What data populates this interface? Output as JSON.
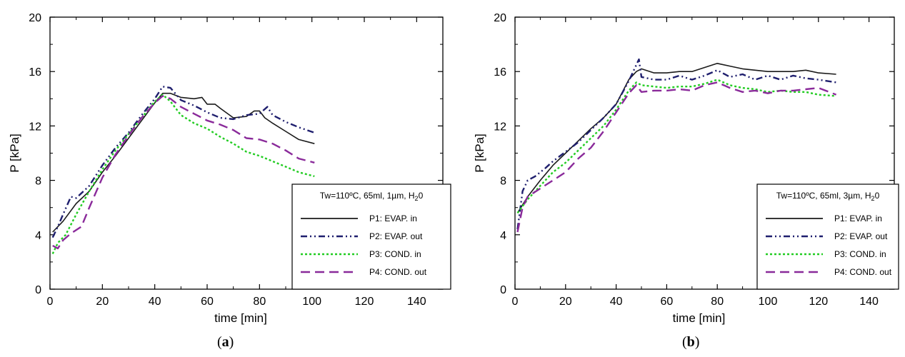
{
  "panels": [
    {
      "id": "a",
      "label": "a",
      "legend_title": "Tw=110ºC, 65ml, 1µm, H",
      "legend_title_sub": "2",
      "legend_title_tail": "0"
    },
    {
      "id": "b",
      "label": "b",
      "legend_title": "Tw=110ºC, 65ml, 3µm, H",
      "legend_title_sub": "2",
      "legend_title_tail": "0"
    }
  ],
  "colors": {
    "P1": "#1a1a1a",
    "P2": "#1f1f6e",
    "P3": "#22cc22",
    "P4": "#8a2a9a"
  },
  "chart_data": [
    {
      "type": "line",
      "xlabel": "time [min]",
      "ylabel": "P [kPa]",
      "xlim": [
        0,
        150
      ],
      "ylim": [
        0,
        20
      ],
      "xticks": [
        0,
        20,
        40,
        60,
        80,
        100,
        120,
        140
      ],
      "yticks": [
        0,
        4,
        8,
        12,
        16,
        20
      ],
      "legend_placement": "bottom-right",
      "series": [
        {
          "name": "P1: EVAP. in",
          "style": "solid",
          "x": [
            1,
            5,
            10,
            15,
            20,
            25,
            30,
            35,
            40,
            43,
            46,
            50,
            55,
            58,
            60,
            63,
            65,
            70,
            75,
            78,
            80,
            82,
            85,
            90,
            95,
            101
          ],
          "y": [
            4.2,
            5.0,
            6.3,
            7.2,
            8.6,
            9.8,
            11.1,
            12.4,
            13.7,
            14.4,
            14.4,
            14.1,
            14.0,
            14.1,
            13.6,
            13.6,
            13.3,
            12.6,
            12.7,
            13.1,
            13.1,
            12.6,
            12.2,
            11.6,
            11.0,
            10.7
          ]
        },
        {
          "name": "P2: EVAP. out",
          "style": "dashdotdot",
          "x": [
            1,
            3,
            5,
            8,
            10,
            15,
            20,
            25,
            30,
            35,
            40,
            43,
            46,
            50,
            55,
            60,
            65,
            70,
            75,
            80,
            83,
            85,
            90,
            95,
            101
          ],
          "y": [
            3.8,
            4.6,
            5.5,
            6.8,
            6.7,
            7.6,
            9.1,
            10.4,
            11.5,
            12.8,
            14.0,
            14.9,
            14.8,
            13.9,
            13.5,
            13.0,
            12.6,
            12.5,
            12.8,
            12.9,
            13.4,
            12.8,
            12.3,
            11.9,
            11.5
          ]
        },
        {
          "name": "P3: COND. in",
          "style": "dotted",
          "x": [
            1,
            3,
            6,
            10,
            15,
            20,
            25,
            30,
            35,
            40,
            43,
            46,
            50,
            55,
            60,
            65,
            70,
            75,
            80,
            85,
            90,
            95,
            101
          ],
          "y": [
            2.6,
            3.4,
            4.0,
            5.5,
            7.2,
            8.8,
            10.2,
            11.4,
            12.6,
            13.8,
            14.3,
            13.8,
            12.8,
            12.2,
            11.8,
            11.2,
            10.7,
            10.1,
            9.8,
            9.4,
            9.0,
            8.6,
            8.3
          ]
        },
        {
          "name": "P4: COND. out",
          "style": "longdash",
          "x": [
            1,
            3,
            5,
            8,
            12,
            15,
            20,
            25,
            30,
            35,
            40,
            43,
            46,
            50,
            55,
            60,
            65,
            70,
            75,
            80,
            85,
            90,
            95,
            101
          ],
          "y": [
            3.2,
            3.0,
            3.6,
            4.1,
            4.6,
            6.0,
            8.2,
            9.9,
            11.3,
            12.6,
            13.7,
            14.2,
            14.0,
            13.4,
            12.9,
            12.4,
            12.1,
            11.7,
            11.1,
            11.0,
            10.7,
            10.2,
            9.6,
            9.3
          ]
        }
      ]
    },
    {
      "type": "line",
      "xlabel": "time [min]",
      "ylabel": "P [kPa]",
      "xlim": [
        0,
        150
      ],
      "ylim": [
        0,
        20
      ],
      "xticks": [
        0,
        20,
        40,
        60,
        80,
        100,
        120,
        140
      ],
      "yticks": [
        0,
        4,
        8,
        12,
        16,
        20
      ],
      "legend_placement": "bottom-right",
      "series": [
        {
          "name": "P1: EVAP. in",
          "style": "solid",
          "x": [
            1,
            5,
            10,
            15,
            20,
            25,
            30,
            35,
            40,
            45,
            48,
            50,
            55,
            60,
            65,
            70,
            75,
            80,
            85,
            90,
            95,
            100,
            105,
            110,
            115,
            120,
            127
          ],
          "y": [
            5.6,
            6.8,
            8.0,
            9.1,
            10.0,
            10.9,
            11.8,
            12.6,
            13.6,
            15.4,
            16.0,
            16.2,
            15.9,
            15.9,
            16.0,
            16.0,
            16.3,
            16.6,
            16.4,
            16.2,
            16.1,
            16.0,
            16.0,
            16.0,
            16.1,
            15.9,
            15.8
          ]
        },
        {
          "name": "P2: EVAP. out",
          "style": "dashdotdot",
          "x": [
            1,
            3,
            5,
            8,
            12,
            15,
            20,
            25,
            30,
            35,
            40,
            45,
            49,
            50,
            55,
            60,
            65,
            70,
            75,
            80,
            85,
            90,
            95,
            100,
            105,
            110,
            115,
            120,
            127
          ],
          "y": [
            4.4,
            7.2,
            8.0,
            8.3,
            8.9,
            9.4,
            10.1,
            10.8,
            11.7,
            12.6,
            13.6,
            15.3,
            16.9,
            15.6,
            15.4,
            15.4,
            15.7,
            15.4,
            15.7,
            16.1,
            15.6,
            15.8,
            15.4,
            15.7,
            15.4,
            15.7,
            15.5,
            15.4,
            15.2
          ]
        },
        {
          "name": "P3: COND. in",
          "style": "dotted",
          "x": [
            1,
            5,
            10,
            15,
            20,
            25,
            30,
            35,
            40,
            45,
            48,
            50,
            55,
            60,
            65,
            70,
            75,
            80,
            85,
            90,
            95,
            100,
            105,
            110,
            115,
            120,
            127
          ],
          "y": [
            5.6,
            6.6,
            7.6,
            8.6,
            9.3,
            10.2,
            11.1,
            12.0,
            13.2,
            14.6,
            15.2,
            15.0,
            14.9,
            14.8,
            14.9,
            14.9,
            15.1,
            15.4,
            15.0,
            14.8,
            14.7,
            14.5,
            14.6,
            14.5,
            14.5,
            14.3,
            14.2
          ]
        },
        {
          "name": "P4: COND. out",
          "style": "longdash",
          "x": [
            1,
            3,
            5,
            10,
            15,
            20,
            25,
            30,
            35,
            40,
            45,
            48,
            50,
            55,
            60,
            65,
            70,
            75,
            80,
            85,
            90,
            95,
            100,
            105,
            110,
            115,
            120,
            127
          ],
          "y": [
            4.2,
            6.0,
            6.8,
            7.4,
            8.0,
            8.6,
            9.6,
            10.4,
            11.6,
            13.0,
            14.4,
            15.0,
            14.5,
            14.6,
            14.6,
            14.7,
            14.6,
            15.0,
            15.2,
            14.8,
            14.5,
            14.6,
            14.4,
            14.6,
            14.6,
            14.7,
            14.8,
            14.3
          ]
        }
      ]
    }
  ]
}
